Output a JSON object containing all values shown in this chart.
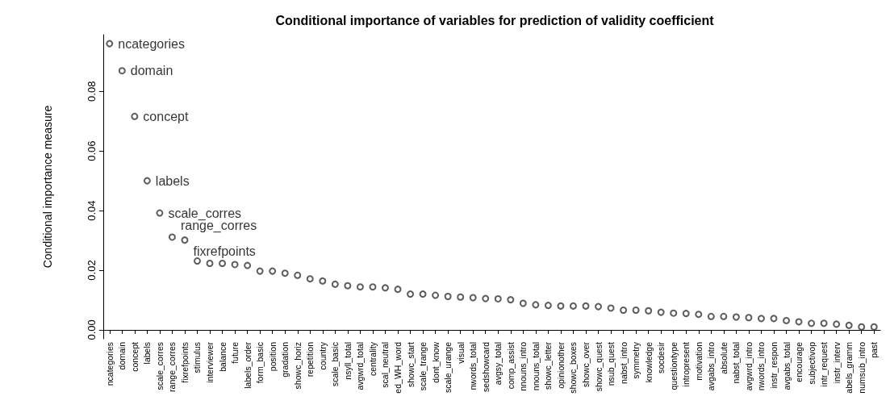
{
  "chart_data": {
    "type": "scatter",
    "title": "Conditional importance of variables for prediction of validity coefficient",
    "ylabel": "Conditional importance measure",
    "categories": [
      "ncategories",
      "domain",
      "concept",
      "labels",
      "scale_corres",
      "range_corres",
      "fixrefpoints",
      "stimulus",
      "interviewer",
      "balance",
      "future",
      "labels_order",
      "form_basic",
      "position",
      "gradation",
      "showc_horiz",
      "repetition",
      "country",
      "scale_basic",
      "nsyll_total",
      "avgwrd_total",
      "centrality",
      "scal_neutral",
      "ed_WH_word",
      "showc_start",
      "scale_trange",
      "dont_know",
      "scale_urange",
      "visual",
      "nwords_total",
      "sedshowcard",
      "avgsy_total",
      "comp_assist",
      "nnouns_intro",
      "nnouns_total",
      "showc_letter",
      "opinionother",
      "showc_boxes",
      "showc_over",
      "showc_quest",
      "nsub_quest",
      "nabst_intro",
      "symmetry",
      "knowledge",
      "socdesir",
      "questiontype",
      "intropresent",
      "motivation",
      "avgabs_intro",
      "absolute",
      "nabst_total",
      "avgwrd_intro",
      "nwords_intro",
      "instr_respon",
      "avgabs_total",
      "encourage",
      "subjectivop",
      "intr_request",
      "instr_interv",
      "abels_gramm",
      "numsub_intro",
      "past"
    ],
    "values": [
      0.096,
      0.0869,
      0.0716,
      0.05,
      0.0392,
      0.0311,
      0.0301,
      0.0231,
      0.0223,
      0.0223,
      0.0219,
      0.0216,
      0.0197,
      0.0197,
      0.019,
      0.0183,
      0.0171,
      0.0164,
      0.0153,
      0.0148,
      0.0144,
      0.0144,
      0.0141,
      0.0136,
      0.012,
      0.012,
      0.0116,
      0.0112,
      0.011,
      0.0108,
      0.0105,
      0.0104,
      0.0101,
      0.0089,
      0.0084,
      0.0082,
      0.008,
      0.008,
      0.008,
      0.0078,
      0.0073,
      0.0066,
      0.0066,
      0.0064,
      0.0059,
      0.0056,
      0.0055,
      0.0052,
      0.0045,
      0.0045,
      0.0043,
      0.0041,
      0.0038,
      0.0038,
      0.0031,
      0.0027,
      0.0022,
      0.0022,
      0.0019,
      0.0015,
      0.001,
      0.001
    ],
    "color": "#333333",
    "marker": "circle",
    "grid": false,
    "ylim": [
      -0.003,
      0.099
    ],
    "yticks": [
      {
        "value": 0,
        "label": "0.00"
      },
      {
        "value": 0.02,
        "label": "0.02"
      },
      {
        "value": 0.04,
        "label": "0.04"
      },
      {
        "value": 0.06,
        "label": "0.06"
      },
      {
        "value": 0.08,
        "label": "0.08"
      }
    ],
    "annotations": [
      {
        "text": "ncategories",
        "x": "ncategories",
        "y": 0.096
      },
      {
        "text": "domain",
        "x": "domain",
        "y": 0.0869
      },
      {
        "text": "concept",
        "x": "concept",
        "y": 0.0716
      },
      {
        "text": "labels",
        "x": "labels",
        "y": 0.05
      },
      {
        "text": "scale_corres",
        "x": "scale_corres",
        "y": 0.0392
      },
      {
        "text": "range_corres",
        "x": "range_corres",
        "y": 0.0311
      },
      {
        "text": "fixrefpoints",
        "x": "fixrefpoints",
        "y": 0.0301
      }
    ]
  }
}
